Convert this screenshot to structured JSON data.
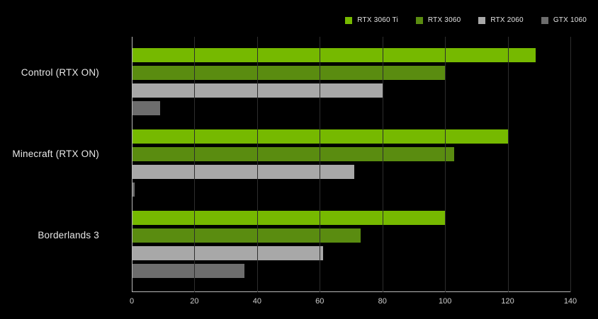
{
  "legend": {
    "items": [
      {
        "label": "RTX 3060 Ti",
        "color": "#76b900"
      },
      {
        "label": "RTX 3060",
        "color": "#5a8c10"
      },
      {
        "label": "RTX 2060",
        "color": "#a8a8a8"
      },
      {
        "label": "GTX 1060",
        "color": "#6d6d6d"
      }
    ]
  },
  "chart_data": {
    "type": "bar",
    "orientation": "horizontal",
    "title": "",
    "xlabel": "",
    "ylabel": "",
    "categories": [
      "Control (RTX ON)",
      "Minecraft (RTX ON)",
      "Borderlands 3"
    ],
    "series": [
      {
        "name": "RTX 3060 Ti",
        "color": "#76b900",
        "values": [
          129,
          120,
          100
        ]
      },
      {
        "name": "RTX 3060",
        "color": "#5a8c10",
        "values": [
          100,
          103,
          73
        ]
      },
      {
        "name": "RTX 2060",
        "color": "#a8a8a8",
        "values": [
          80,
          71,
          61
        ]
      },
      {
        "name": "GTX 1060",
        "color": "#6d6d6d",
        "values": [
          9,
          1,
          36
        ]
      }
    ],
    "xlim": [
      0,
      140
    ],
    "xticks": [
      0,
      20,
      40,
      60,
      80,
      100,
      120,
      140
    ],
    "grid": true,
    "legend_position": "top-right",
    "background": "#000000"
  }
}
